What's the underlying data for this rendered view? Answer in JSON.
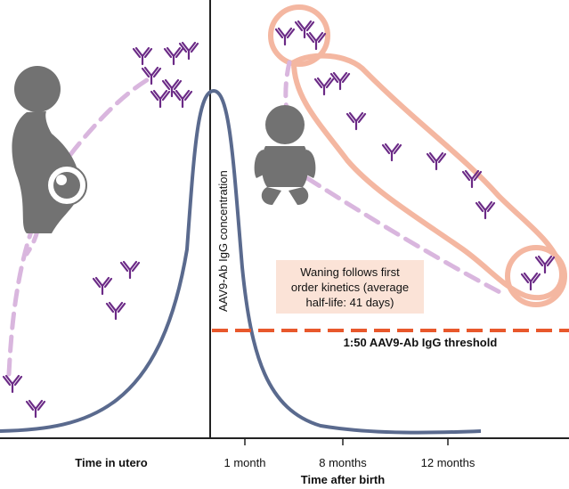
{
  "y_axis_label": "AAV9-Ab IgG concentration",
  "x_axis": {
    "left_label": "Time in utero",
    "tick_labels": [
      "1 month",
      "8 months",
      "12 months"
    ],
    "right_title": "Time after birth"
  },
  "annotation": {
    "line1": "Waning follows first",
    "line2": "order kinetics (average",
    "line3": "half-life: 41 days)"
  },
  "threshold_label": "1:50 AAV9-Ab IgG threshold",
  "colors": {
    "curve": "#5a6a8e",
    "threshold": "#e8582c",
    "transfer_dash": "#d9b6de",
    "antibody": "#6b2a86",
    "silhouette": "#727272",
    "annotation_box": "#fbe3d7",
    "outline": "#f4b7a1"
  },
  "icons": {
    "mother": "pregnant-woman-icon",
    "fetus": "fetus-icon",
    "baby": "infant-icon",
    "antibody": "antibody-icon"
  }
}
